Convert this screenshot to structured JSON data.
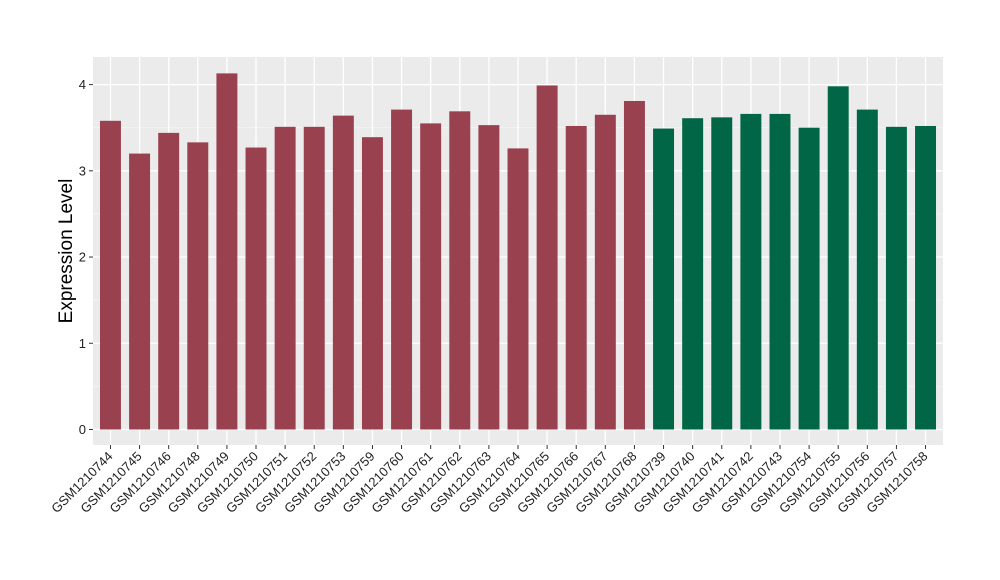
{
  "chart_data": {
    "type": "bar",
    "ylabel": "Expression Level",
    "xlabel": "",
    "ylim": [
      -0.18,
      4.32
    ],
    "yticks": [
      0,
      1,
      2,
      3,
      4
    ],
    "grid": true,
    "colors": {
      "group_a": "#9a4150",
      "group_b": "#006645",
      "panel": "#ebebeb",
      "grid": "#ffffff"
    },
    "categories": [
      "GSM1210744",
      "GSM1210745",
      "GSM1210746",
      "GSM1210748",
      "GSM1210749",
      "GSM1210750",
      "GSM1210751",
      "GSM1210752",
      "GSM1210753",
      "GSM1210759",
      "GSM1210760",
      "GSM1210761",
      "GSM1210762",
      "GSM1210763",
      "GSM1210764",
      "GSM1210765",
      "GSM1210766",
      "GSM1210767",
      "GSM1210768",
      "GSM1210739",
      "GSM1210740",
      "GSM1210741",
      "GSM1210742",
      "GSM1210743",
      "GSM1210754",
      "GSM1210755",
      "GSM1210756",
      "GSM1210757",
      "GSM1210758"
    ],
    "values": [
      3.58,
      3.2,
      3.44,
      3.33,
      4.13,
      3.27,
      3.51,
      3.51,
      3.64,
      3.39,
      3.71,
      3.55,
      3.69,
      3.53,
      3.26,
      3.99,
      3.52,
      3.65,
      3.81,
      3.49,
      3.61,
      3.62,
      3.66,
      3.66,
      3.5,
      3.98,
      3.71,
      3.51,
      3.52
    ],
    "groups": [
      "a",
      "a",
      "a",
      "a",
      "a",
      "a",
      "a",
      "a",
      "a",
      "a",
      "a",
      "a",
      "a",
      "a",
      "a",
      "a",
      "a",
      "a",
      "a",
      "b",
      "b",
      "b",
      "b",
      "b",
      "b",
      "b",
      "b",
      "b",
      "b"
    ]
  }
}
